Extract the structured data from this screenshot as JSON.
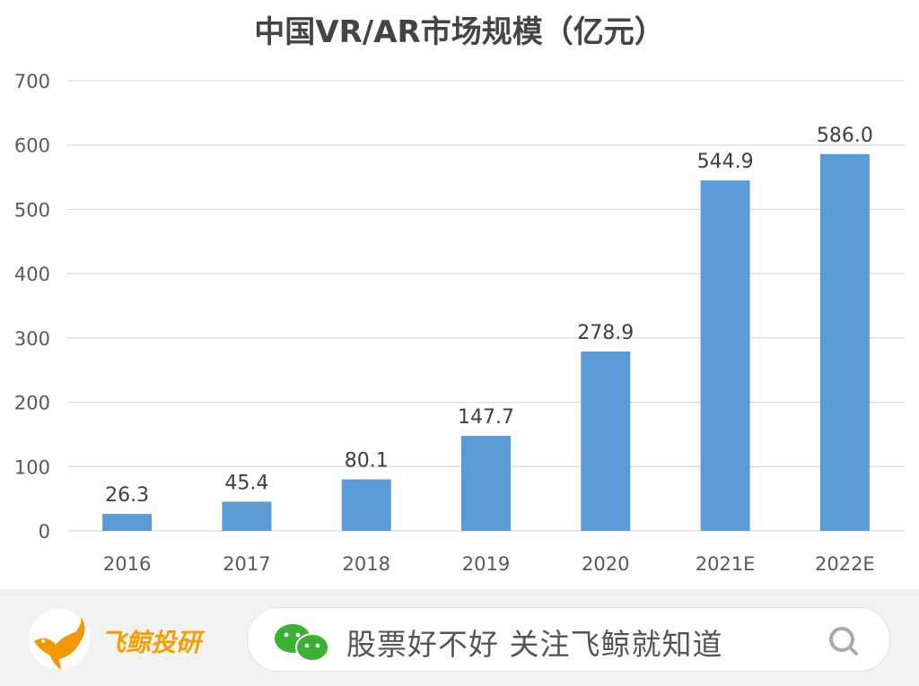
{
  "chart_data": {
    "type": "bar",
    "title": "中国VR/AR市场规模（亿元）",
    "categories": [
      "2016",
      "2017",
      "2018",
      "2019",
      "2020",
      "2021E",
      "2022E"
    ],
    "values": [
      26.3,
      45.4,
      80.1,
      147.7,
      278.9,
      544.9,
      586.0
    ],
    "data_labels": [
      "26.3",
      "45.4",
      "80.1",
      "147.7",
      "278.9",
      "544.9",
      "586.0"
    ],
    "ylim": [
      0,
      700
    ],
    "yticks": [
      0,
      100,
      200,
      300,
      400,
      500,
      600,
      700
    ],
    "grid": true,
    "bar_color": "#5b9bd5"
  },
  "footer": {
    "brand": "飞鲸投研",
    "slogan": "股票好不好 关注飞鲸就知道",
    "brand_color": "#f5a000",
    "icons": [
      "whale-logo-icon",
      "wechat-icon",
      "search-icon"
    ]
  }
}
